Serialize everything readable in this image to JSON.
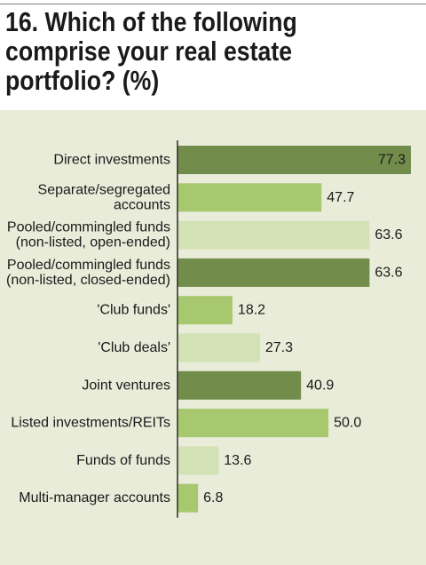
{
  "title": "16. Which of the following comprise your real estate portfolio? (%)",
  "title_lines": [
    "16. Which of the following",
    "comprise your real estate",
    "portfolio? (%)"
  ],
  "colors": {
    "panel_bg": "#e9ecd9",
    "dark_green": "#728c4b",
    "mid_green": "#a8c870",
    "light_green": "#d3e2b4",
    "axis": "#2b2b2b",
    "value_on_dark": "#1a1a1a"
  },
  "chart_data": {
    "type": "bar",
    "orientation": "horizontal",
    "title": "16. Which of the following comprise your real estate portfolio? (%)",
    "xlabel": "",
    "ylabel": "",
    "xlim": [
      0,
      77.3
    ],
    "grid": false,
    "legend": "none",
    "categories": [
      [
        "Direct investments"
      ],
      [
        "Separate/segregated",
        "accounts"
      ],
      [
        "Pooled/commingled funds",
        "(non-listed, open-ended)"
      ],
      [
        "Pooled/commingled funds",
        "(non-listed, closed-ended)"
      ],
      [
        "'Club funds'"
      ],
      [
        "'Club deals'"
      ],
      [
        "Joint ventures"
      ],
      [
        "Listed investments/REITs"
      ],
      [
        "Funds of funds"
      ],
      [
        "Multi-manager accounts"
      ]
    ],
    "values": [
      77.3,
      47.7,
      63.6,
      63.6,
      18.2,
      27.3,
      40.9,
      50.0,
      13.6,
      6.8
    ],
    "value_labels": [
      "77.3",
      "47.7",
      "63.6",
      "63.6",
      "18.2",
      "27.3",
      "40.9",
      "50.0",
      "13.6",
      "6.8"
    ],
    "bar_colors": [
      "dark",
      "mid",
      "light",
      "dark",
      "mid",
      "light",
      "dark",
      "mid",
      "light",
      "mid"
    ]
  }
}
